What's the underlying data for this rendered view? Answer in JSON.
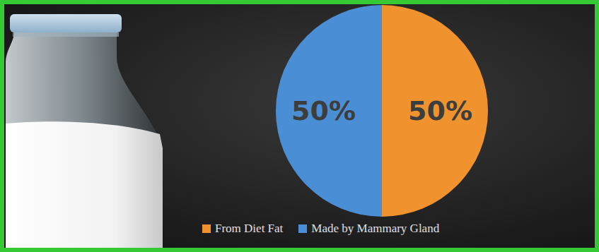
{
  "chart_data": {
    "type": "pie",
    "categories": [
      "From Diet Fat",
      "Made by Mammary Gland"
    ],
    "values": [
      50,
      50
    ],
    "value_labels": [
      "50%",
      "50%"
    ],
    "colors": [
      "#f0922e",
      "#4a8fd6"
    ],
    "data_labels": true,
    "legend": "bottom"
  }
}
